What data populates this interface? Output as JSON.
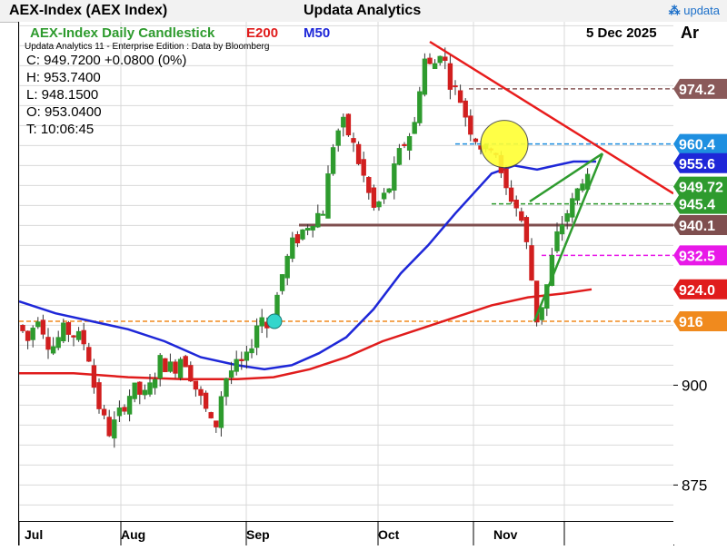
{
  "header": {
    "instrument": "AEX-Index (AEX Index)",
    "brand": "Updata Analytics",
    "logo_text": "updata"
  },
  "chart_header": {
    "chart_title": "AEX-Index Daily Candlestick",
    "ma_long_label": "E200",
    "ma_short_label": "M50",
    "date": "5 Dec 2025",
    "edition": "Updata Analytics 11 - Enterprise Edition : Data by Bloomberg",
    "axis_corner": "Ar"
  },
  "ohlc": {
    "close": "C: 949.7200  +0.0800 (0%)",
    "high": "H: 953.7400",
    "low": "L: 948.1500",
    "open": "O: 953.0400",
    "time": "T: 10:06:45"
  },
  "colors": {
    "up": "#2e9b2e",
    "down": "#d11f1f",
    "e200": "#e01c1c",
    "m50": "#1e27d8",
    "trend_down": "#e81c1c",
    "trend_up": "#2e9b2e",
    "support": "#7a4a4a",
    "grid": "#d9d9d9",
    "brown_line": "#7f4f4f"
  },
  "chart_data": {
    "type": "candlestick",
    "ylim": [
      866,
      991
    ],
    "ytick_labels": [
      "875",
      "900"
    ],
    "ytick_values": [
      875,
      900
    ],
    "month_labels": [
      "Jul",
      "Aug",
      "Sep",
      "Oct",
      "Nov"
    ],
    "level_labels": [
      {
        "name": "level-974",
        "text": "974.2",
        "value": 974.2,
        "color": "#8a5a5a",
        "dashed": true
      },
      {
        "name": "level-960",
        "text": "960.4",
        "value": 960.4,
        "color": "#1e8fe0",
        "dashed": true
      },
      {
        "name": "level-955",
        "text": "955.6",
        "value": 955.6,
        "color": "#1e27d8",
        "dashed": false
      },
      {
        "name": "level-949",
        "text": "949.72",
        "value": 949.72,
        "color": "#2e9b2e",
        "dashed": false
      },
      {
        "name": "level-945",
        "text": "945.4",
        "value": 945.4,
        "color": "#2e9b2e",
        "dashed": true
      },
      {
        "name": "level-940",
        "text": "940.1",
        "value": 940.1,
        "color": "#7f4f4f",
        "dashed": false
      },
      {
        "name": "level-932",
        "text": "932.5",
        "value": 932.5,
        "color": "#e819e8",
        "dashed": true
      },
      {
        "name": "level-924",
        "text": "924.0",
        "value": 924.0,
        "color": "#e01c1c",
        "dashed": false
      },
      {
        "name": "level-916",
        "text": "916",
        "value": 916.0,
        "color": "#f08a1e",
        "dashed": true
      }
    ]
  }
}
